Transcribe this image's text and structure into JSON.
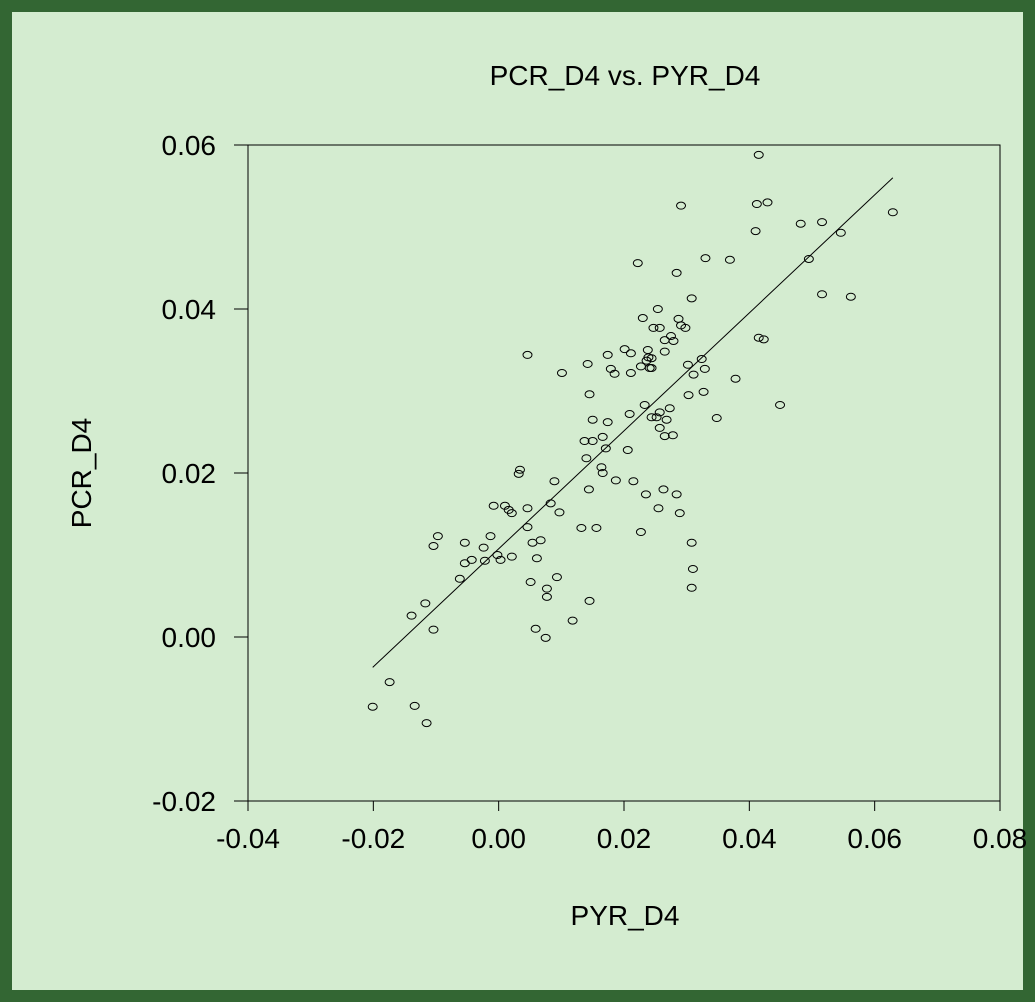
{
  "chart_data": {
    "type": "scatter",
    "title": "PCR_D4 vs. PYR_D4",
    "x_label": "PYR_D4",
    "y_label": "PCR_D4",
    "x": [
      0.0415,
      0.0291,
      0.0412,
      0.0429,
      0.0516,
      0.0482,
      0.0629,
      0.041,
      0.0546,
      0.0495,
      0.033,
      0.0369,
      0.0222,
      0.0284,
      0.0516,
      0.0562,
      0.0308,
      0.0254,
      0.023,
      0.0287,
      0.0291,
      0.0247,
      0.0257,
      0.0298,
      0.0275,
      0.0265,
      0.0279,
      0.0423,
      0.0415,
      0.0201,
      0.0211,
      0.0238,
      0.0046,
      0.0174,
      0.0265,
      0.0239,
      0.0236,
      0.0244,
      0.0324,
      0.0302,
      0.0142,
      0.0227,
      0.0241,
      0.0244,
      0.0329,
      0.0179,
      0.0185,
      0.0101,
      0.0211,
      0.0311,
      0.0378,
      0.0145,
      0.0303,
      0.0327,
      0.0233,
      0.0449,
      0.0273,
      0.0257,
      0.0209,
      0.0244,
      0.0252,
      0.0348,
      0.0268,
      0.015,
      0.0174,
      0.0257,
      0.0278,
      0.0265,
      0.0166,
      0.0137,
      0.015,
      0.0171,
      0.0206,
      0.014,
      0.0164,
      0.0166,
      0.0034,
      0.0032,
      0.0187,
      0.0215,
      0.0089,
      0.0263,
      0.0144,
      0.0235,
      0.0284,
      0.0083,
      0.0255,
      -0.0008,
      0.001,
      0.0046,
      0.0016,
      0.0021,
      0.0289,
      0.0097,
      0.0046,
      0.0132,
      0.0156,
      0.0227,
      -0.0013,
      -0.0097,
      0.0067,
      -0.0054,
      0.0308,
      0.0054,
      -0.0104,
      -0.0024,
      -0.0002,
      0.0021,
      0.0061,
      0.0003,
      -0.0043,
      -0.0022,
      -0.0054,
      0.031,
      0.0093,
      -0.0062,
      0.0051,
      0.0308,
      0.0077,
      0.0077,
      0.0145,
      -0.0117,
      -0.0139,
      0.0118,
      0.0059,
      -0.0104,
      0.0075,
      -0.0174,
      -0.0201,
      -0.0134,
      -0.0115
    ],
    "y": [
      0.0588,
      0.0526,
      0.0528,
      0.053,
      0.0506,
      0.0504,
      0.0518,
      0.0495,
      0.0493,
      0.0461,
      0.0462,
      0.046,
      0.0456,
      0.0444,
      0.0418,
      0.0415,
      0.0413,
      0.04,
      0.0389,
      0.0388,
      0.038,
      0.0377,
      0.0377,
      0.0377,
      0.0367,
      0.0362,
      0.0361,
      0.0363,
      0.0365,
      0.0351,
      0.0346,
      0.035,
      0.0344,
      0.0344,
      0.0348,
      0.0341,
      0.0337,
      0.034,
      0.0339,
      0.0332,
      0.0333,
      0.033,
      0.0328,
      0.0328,
      0.0327,
      0.0327,
      0.0321,
      0.0322,
      0.0322,
      0.032,
      0.0315,
      0.0296,
      0.0295,
      0.0299,
      0.0283,
      0.0283,
      0.0279,
      0.0274,
      0.0272,
      0.0268,
      0.0268,
      0.0267,
      0.0265,
      0.0265,
      0.0262,
      0.0255,
      0.0246,
      0.0245,
      0.0244,
      0.0239,
      0.0239,
      0.023,
      0.0228,
      0.0218,
      0.0207,
      0.02,
      0.0204,
      0.0199,
      0.0191,
      0.019,
      0.019,
      0.018,
      0.018,
      0.0174,
      0.0174,
      0.0163,
      0.0157,
      0.016,
      0.016,
      0.0157,
      0.0155,
      0.0151,
      0.0151,
      0.0152,
      0.0134,
      0.0133,
      0.0133,
      0.0128,
      0.0123,
      0.0123,
      0.0118,
      0.0115,
      0.0115,
      0.0115,
      0.0111,
      0.0109,
      0.01,
      0.0098,
      0.0096,
      0.0094,
      0.0094,
      0.0093,
      0.009,
      0.0083,
      0.0073,
      0.0071,
      0.0067,
      0.006,
      0.0059,
      0.0049,
      0.0044,
      0.0041,
      0.0026,
      0.002,
      0.001,
      0.0009,
      -0.0001,
      -0.0055,
      -0.0085,
      -0.0084,
      -0.0105
    ],
    "fit": {
      "x": [
        -0.0201,
        0.0629
      ],
      "y": [
        -0.0037,
        0.056
      ]
    },
    "xlim": [
      -0.04,
      0.08
    ],
    "xticks": [
      -0.04,
      -0.02,
      {
        "value": 0,
        "label": "0.00"
      },
      0.02,
      0.04,
      0.06,
      0.08
    ],
    "ylim": [
      -0.02,
      0.06
    ],
    "yticks": [
      -0.02,
      {
        "value": 0,
        "label": "0.00"
      },
      0.02,
      0.04,
      0.06
    ],
    "color": "#000000",
    "background": "#d4ecd0",
    "frame_color": "#336633"
  }
}
